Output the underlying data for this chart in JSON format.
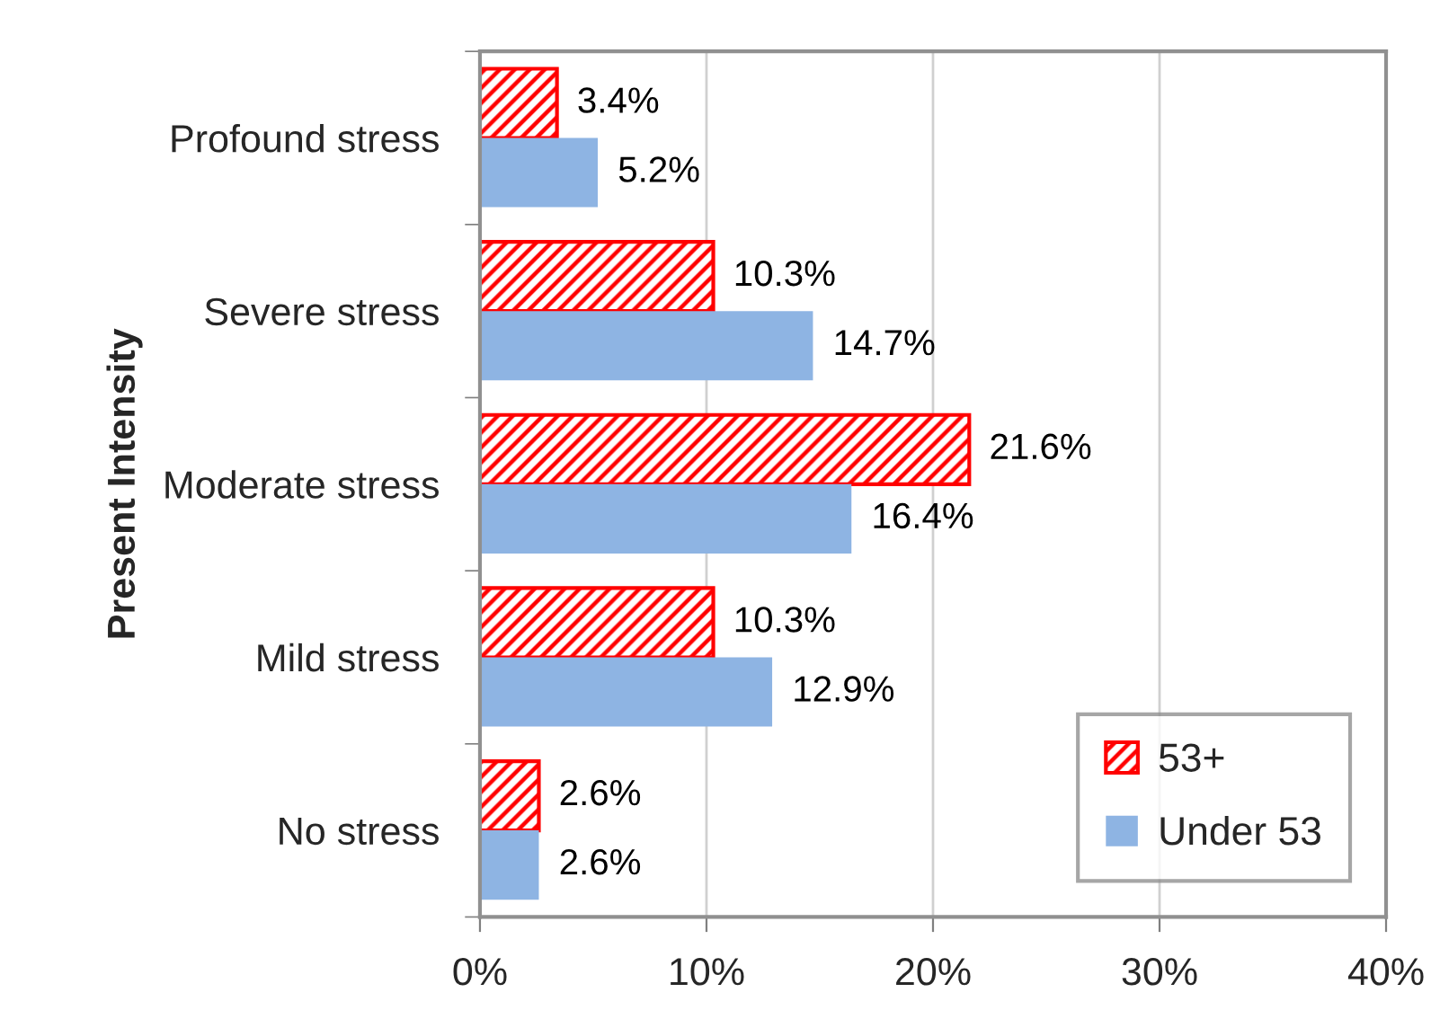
{
  "chart_data": {
    "type": "bar",
    "orientation": "horizontal",
    "ylabel": "Present Intensity",
    "categories": [
      "Profound stress",
      "Severe stress",
      "Moderate stress",
      "Mild stress",
      "No stress"
    ],
    "series": [
      {
        "name": "53+",
        "color": "#ff0000",
        "values": [
          3.4,
          10.3,
          21.6,
          10.3,
          2.6
        ],
        "value_labels": [
          "3.4%",
          "10.3%",
          "21.6%",
          "10.3%",
          "2.6%"
        ]
      },
      {
        "name": "Under 53",
        "color": "#8eb4e3",
        "values": [
          5.2,
          14.7,
          16.4,
          12.9,
          2.6
        ],
        "value_labels": [
          "5.2%",
          "14.7%",
          "16.4%",
          "12.9%",
          "2.6%"
        ]
      }
    ],
    "xlim": [
      0,
      40
    ],
    "xticks": [
      {
        "value": 0,
        "label": "0%"
      },
      {
        "value": 10,
        "label": "10%"
      },
      {
        "value": 20,
        "label": "20%"
      },
      {
        "value": 30,
        "label": "30%"
      },
      {
        "value": 40,
        "label": "40%"
      }
    ],
    "grid": "x",
    "legend": "bottom right"
  }
}
